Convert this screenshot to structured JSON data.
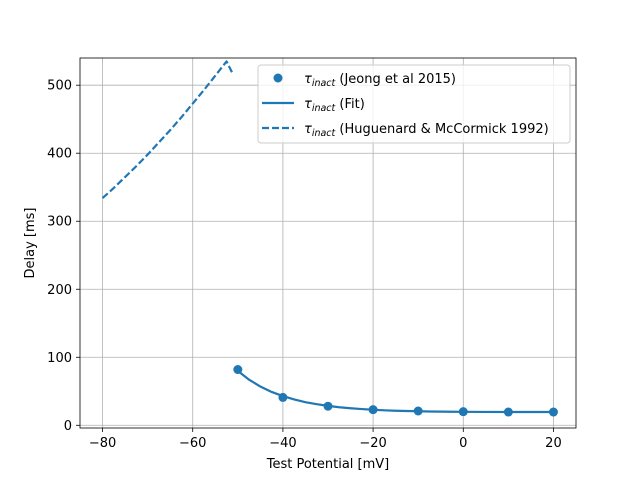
{
  "chart_data": {
    "type": "line",
    "xlabel": "Test Potential [mV]",
    "ylabel": "Delay [ms]",
    "xlim": [
      -85,
      25
    ],
    "ylim": [
      -4,
      540
    ],
    "xticks": [
      -80,
      -60,
      -40,
      -20,
      0,
      20
    ],
    "xtick_labels": [
      "−80",
      "−60",
      "−40",
      "−20",
      "0",
      "20"
    ],
    "yticks": [
      0,
      100,
      200,
      300,
      400,
      500
    ],
    "ytick_labels": [
      "0",
      "100",
      "200",
      "300",
      "400",
      "500"
    ],
    "grid": true,
    "legend_position": "upper-right",
    "color": "#1f77b4",
    "series": [
      {
        "name": "τinact (Jeong et al 2015)",
        "name_symbol": "τ",
        "name_subscript": "inact",
        "name_suffix": " (Jeong et al 2015)",
        "style": "scatter",
        "x": [
          -50,
          -40,
          -30,
          -20,
          -10,
          0,
          10,
          20
        ],
        "y": [
          82,
          41,
          28,
          23,
          21,
          20,
          19.5,
          19.5
        ]
      },
      {
        "name": "τinact (Fit)",
        "name_symbol": "τ",
        "name_subscript": "inact",
        "name_suffix": " (Fit)",
        "style": "solid",
        "x": [
          -50,
          -47.5,
          -45,
          -42.5,
          -40,
          -37.5,
          -35,
          -32.5,
          -30,
          -27.5,
          -25,
          -22.5,
          -20,
          -17.5,
          -15,
          -12.5,
          -10,
          -7.5,
          -5,
          -2.5,
          0,
          5,
          10,
          15,
          20
        ],
        "y": [
          80,
          67,
          57,
          49,
          43,
          38,
          34,
          31,
          28.5,
          26.5,
          25,
          23.8,
          22.8,
          22,
          21.4,
          21,
          20.6,
          20.3,
          20.1,
          19.9,
          19.8,
          19.6,
          19.5,
          19.5,
          19.5
        ]
      },
      {
        "name": "τinact (Huguenard & McCormick 1992)",
        "name_symbol": "τ",
        "name_subscript": "inact",
        "name_suffix": " (Huguenard & McCormick 1992)",
        "style": "dashed",
        "x": [
          -80,
          -77.5,
          -75,
          -72.5,
          -70,
          -67.5,
          -65,
          -62.5,
          -60,
          -57.5,
          -55,
          -52.5,
          -51
        ],
        "y": [
          334,
          349,
          365,
          381,
          398,
          416,
          434,
          453,
          473,
          493,
          514,
          535,
          515
        ]
      }
    ]
  }
}
